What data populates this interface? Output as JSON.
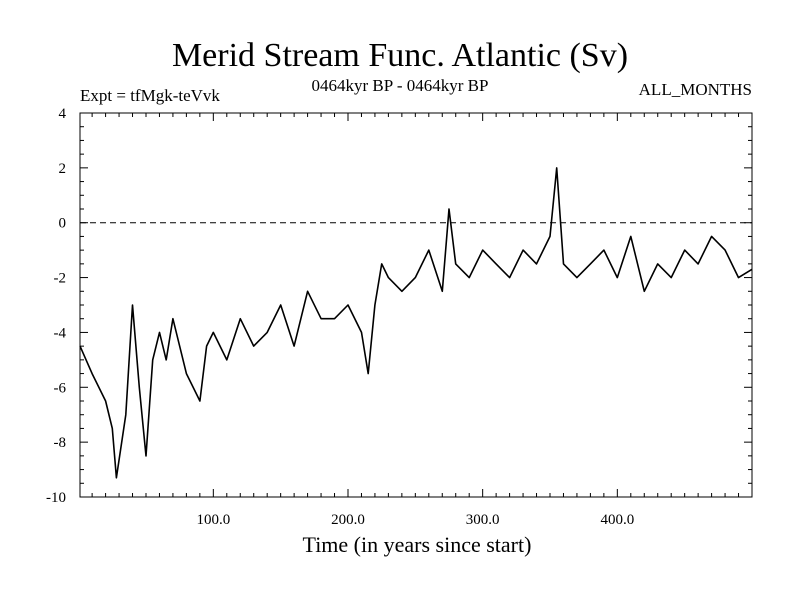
{
  "chart_data": {
    "type": "line",
    "title": "Merid Stream Func. Atlantic (Sv)",
    "subtitle_left": "Expt = tfMgk-teVvk",
    "subtitle_center": "0464kyr BP - 0464kyr BP",
    "subtitle_right": "ALL_MONTHS",
    "xlabel": "Time (in years since start)",
    "ylabel": "",
    "xlim": [
      1,
      500
    ],
    "ylim": [
      -10,
      4
    ],
    "xticks": [
      100,
      200,
      300,
      400
    ],
    "xtick_labels": [
      "100.0",
      "200.0",
      "300.0",
      "400.0"
    ],
    "yticks": [
      -10,
      -8,
      -6,
      -4,
      -2,
      0,
      2,
      4
    ],
    "ytick_labels": [
      "-10",
      "-8",
      "-6",
      "-4",
      "-2",
      "0",
      "2",
      "4"
    ],
    "reference_line": {
      "y": 0,
      "style": "dashed"
    },
    "grid": false,
    "series": [
      {
        "color": "#000000",
        "x": [
          1,
          10,
          20,
          25,
          28,
          35,
          40,
          45,
          50,
          55,
          60,
          65,
          70,
          80,
          90,
          95,
          100,
          110,
          120,
          130,
          140,
          150,
          160,
          170,
          180,
          190,
          200,
          210,
          215,
          220,
          225,
          230,
          240,
          250,
          260,
          270,
          275,
          280,
          290,
          300,
          310,
          320,
          330,
          340,
          350,
          355,
          360,
          370,
          380,
          390,
          400,
          410,
          420,
          430,
          440,
          450,
          460,
          470,
          480,
          490,
          500
        ],
        "y": [
          -4.5,
          -5.5,
          -6.5,
          -7.5,
          -9.3,
          -7.0,
          -3.0,
          -6.0,
          -8.5,
          -5.0,
          -4.0,
          -5.0,
          -3.5,
          -5.5,
          -6.5,
          -4.5,
          -4.0,
          -5.0,
          -3.5,
          -4.5,
          -4.0,
          -3.0,
          -4.5,
          -2.5,
          -3.5,
          -3.5,
          -3.0,
          -4.0,
          -5.5,
          -3.0,
          -1.5,
          -2.0,
          -2.5,
          -2.0,
          -1.0,
          -2.5,
          0.5,
          -1.5,
          -2.0,
          -1.0,
          -1.5,
          -2.0,
          -1.0,
          -1.5,
          -0.5,
          2.0,
          -1.5,
          -2.0,
          -1.5,
          -1.0,
          -2.0,
          -0.5,
          -2.5,
          -1.5,
          -2.0,
          -1.0,
          -1.5,
          -0.5,
          -1.0,
          -2.0,
          -1.7
        ]
      }
    ]
  }
}
